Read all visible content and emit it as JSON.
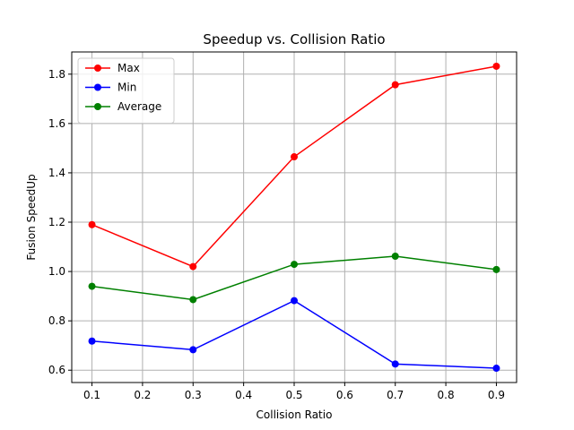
{
  "chart_data": {
    "type": "line",
    "title": "Speedup vs. Collision Ratio",
    "xlabel": "Collision Ratio",
    "ylabel": "Fusion SpeedUp",
    "x": [
      0.1,
      0.3,
      0.5,
      0.7,
      0.9
    ],
    "xlim": [
      0.06,
      0.94
    ],
    "ylim": [
      0.55,
      1.89
    ],
    "xticks": [
      "0.1",
      "0.2",
      "0.3",
      "0.4",
      "0.5",
      "0.6",
      "0.7",
      "0.8",
      "0.9"
    ],
    "yticks": [
      "0.6",
      "0.8",
      "1.0",
      "1.2",
      "1.4",
      "1.6",
      "1.8"
    ],
    "grid": true,
    "legend_position": "upper-left",
    "series": [
      {
        "name": "Max",
        "color": "#ff0000",
        "marker": "circle",
        "values": [
          1.19,
          1.02,
          1.465,
          1.757,
          1.832
        ]
      },
      {
        "name": "Min",
        "color": "#0000ff",
        "marker": "circle",
        "values": [
          0.718,
          0.683,
          0.882,
          0.625,
          0.608
        ]
      },
      {
        "name": "Average",
        "color": "#008000",
        "marker": "circle",
        "values": [
          0.94,
          0.886,
          1.029,
          1.062,
          1.008
        ]
      }
    ]
  }
}
